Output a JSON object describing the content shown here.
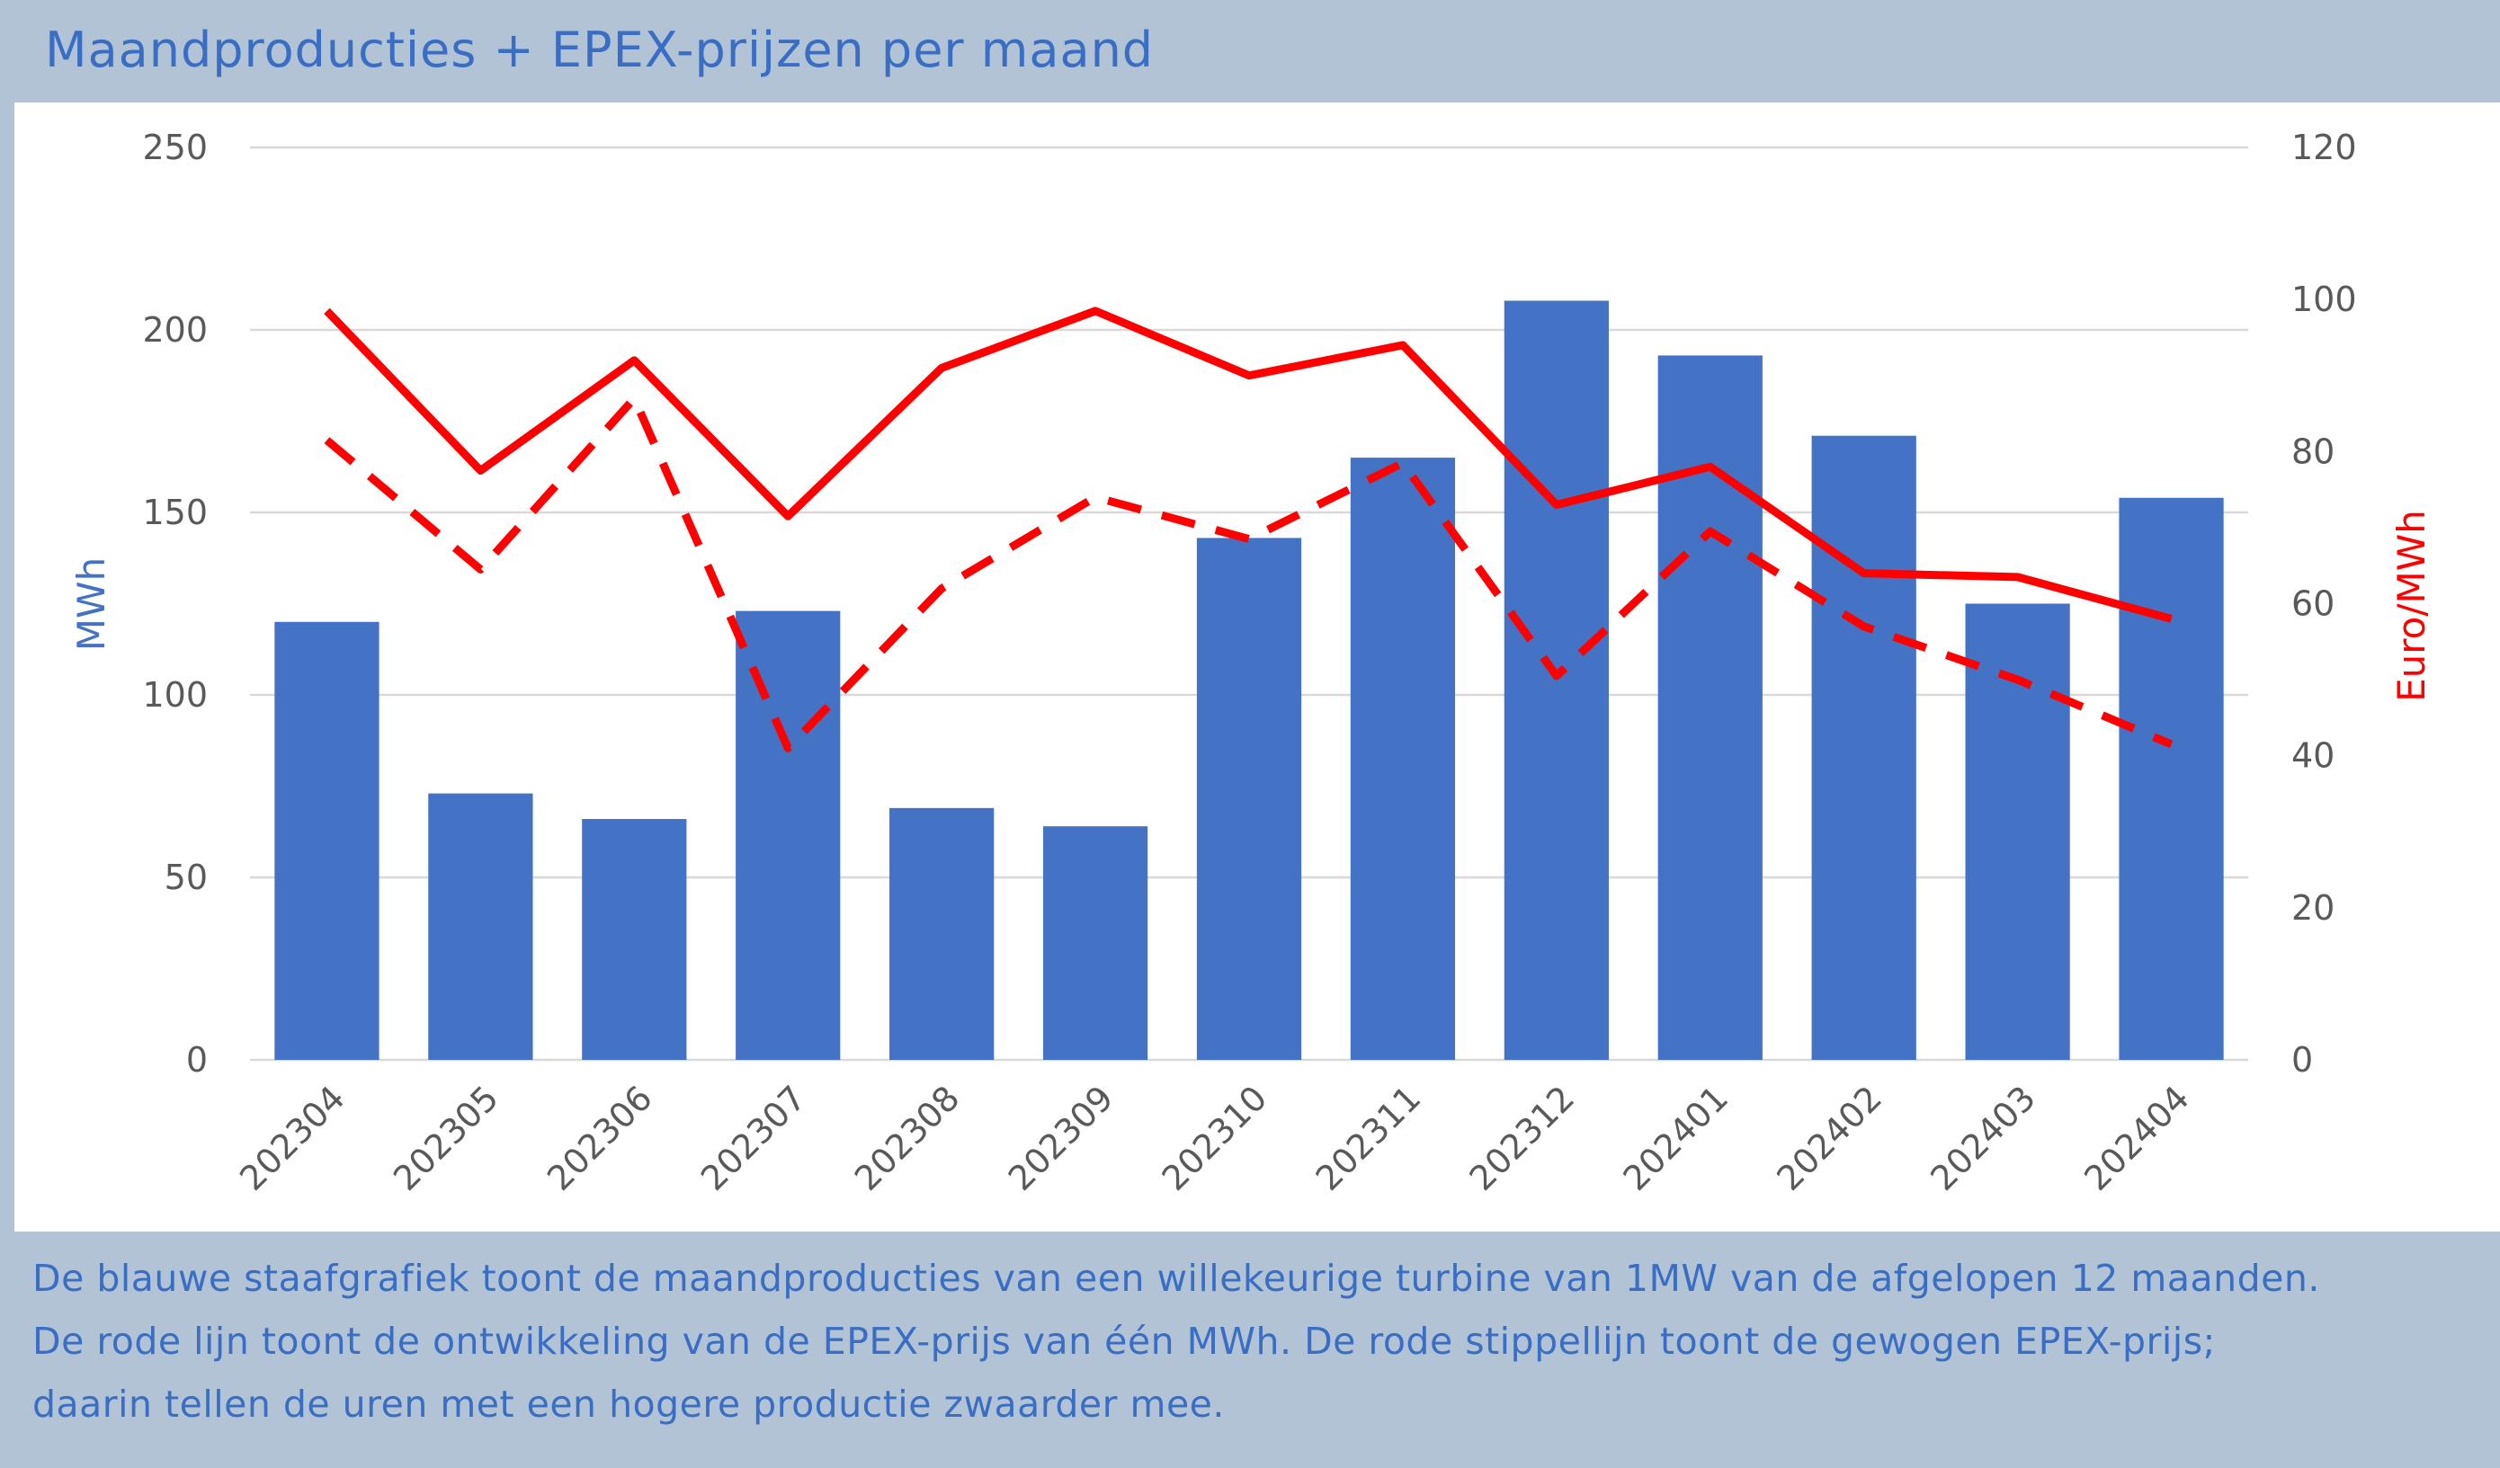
{
  "header": {
    "title": "Maandproducties + EPEX-prijzen per maand"
  },
  "footer": {
    "lines": [
      "De blauwe staafgrafiek toont de maandproducties van een willekeurige turbine van 1MW van de afgelopen 12 maanden.",
      "De rode lijn toont de ontwikkeling van de EPEX-prijs van één MWh. De rode stippellijn toont de gewogen EPEX-prijs;",
      "daarin tellen de uren met een hogere productie zwaarder mee."
    ]
  },
  "colors": {
    "bars": "#4472c4",
    "lines": "#ff0000",
    "grid": "#d9d9d9",
    "text_blue": "#3a6ec4",
    "background": "#b2c3d6"
  },
  "chart_data": {
    "type": "bar",
    "categories": [
      "202304",
      "202305",
      "202306",
      "202307",
      "202308",
      "202309",
      "202310",
      "202311",
      "202312",
      "202401",
      "202402",
      "202403",
      "202404"
    ],
    "ylabel_left": "MWh",
    "ylabel_right": "Euro/MWh",
    "ylim_left": [
      0,
      250
    ],
    "ylim_right": [
      0,
      120
    ],
    "yticks_left": [
      0,
      50,
      100,
      150,
      200,
      250
    ],
    "yticks_right": [
      0,
      20,
      40,
      60,
      80,
      100,
      120
    ],
    "grid": true,
    "series": [
      {
        "type": "bar",
        "axis": "left",
        "values": [
          120,
          73,
          66,
          123,
          69,
          64,
          143,
          165,
          208,
          193,
          171,
          125,
          154
        ]
      },
      {
        "type": "line",
        "axis": "right",
        "style": "solid",
        "values": [
          98.5,
          77.5,
          92,
          71.5,
          91,
          98.5,
          90,
          94,
          73,
          78,
          64,
          63.5,
          58
        ]
      },
      {
        "type": "line",
        "axis": "right",
        "style": "dashed",
        "values": [
          81.5,
          64.5,
          87,
          41,
          62,
          74,
          68.5,
          78.5,
          50.5,
          69.5,
          57,
          50,
          41.5
        ]
      }
    ]
  }
}
